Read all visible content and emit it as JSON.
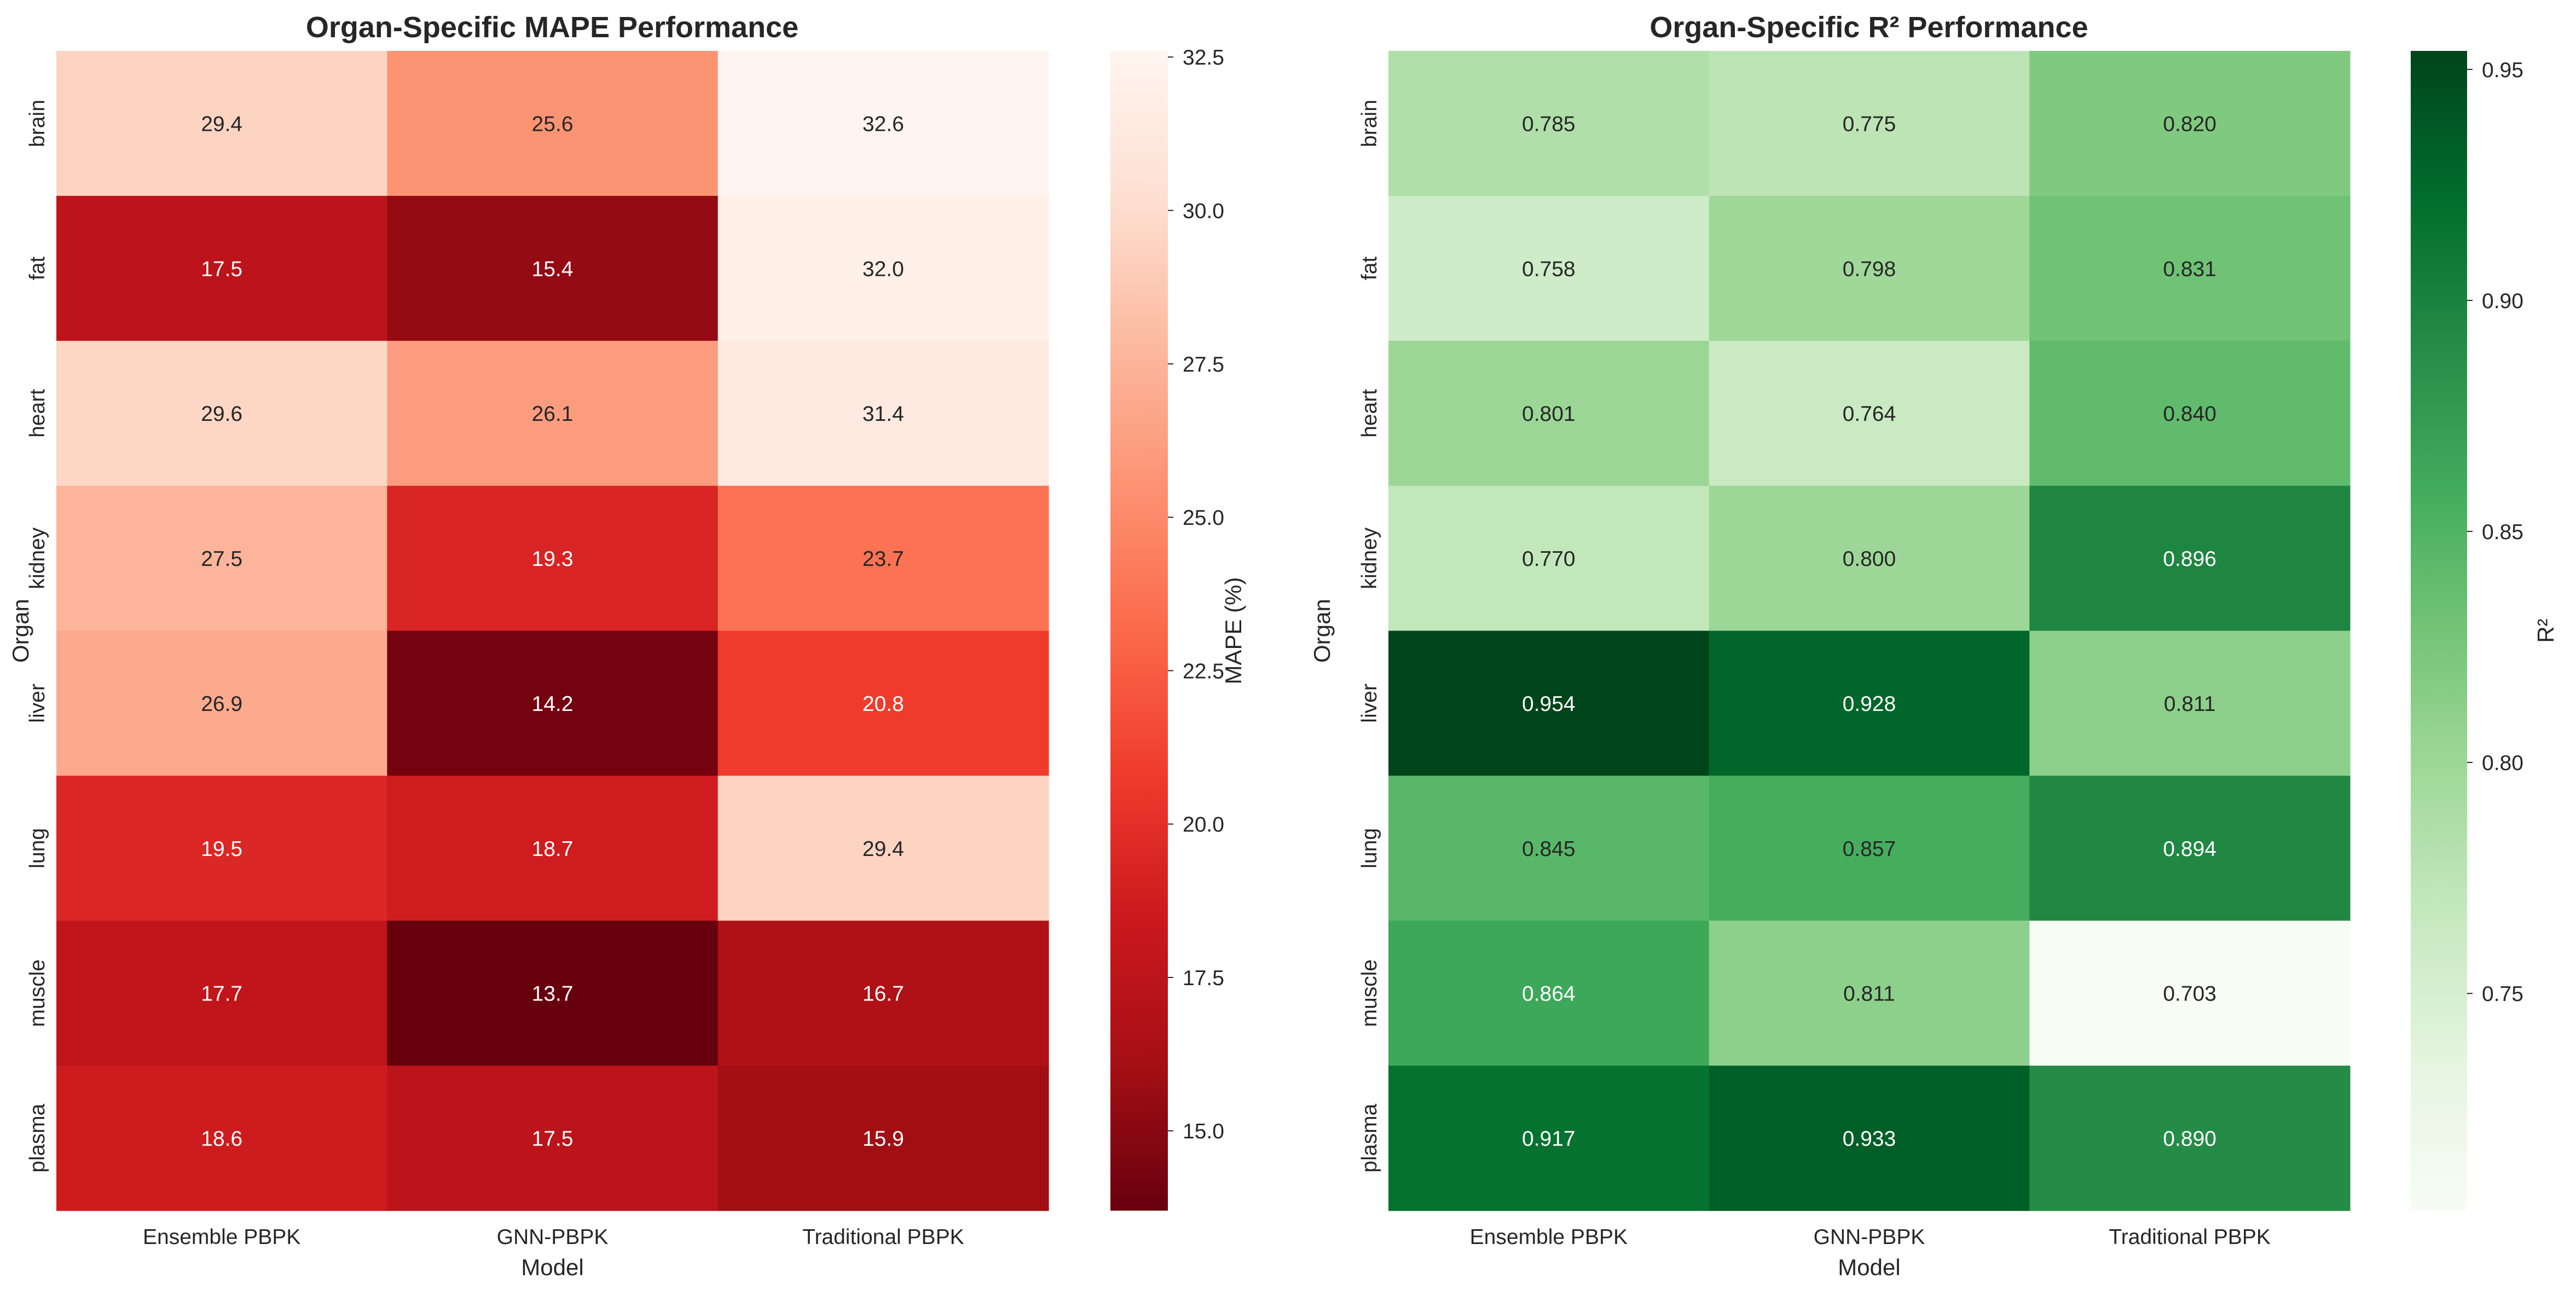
{
  "chart_data": [
    {
      "type": "heatmap",
      "title": "Organ-Specific MAPE Performance",
      "xlabel": "Model",
      "ylabel": "Organ",
      "colorbar_label": "MAPE (%)",
      "colormap": "Reds_r",
      "vmin": 13.7,
      "vmax": 32.6,
      "colorbar_ticks": [
        "15.0",
        "17.5",
        "20.0",
        "22.5",
        "25.0",
        "27.5",
        "30.0",
        "32.5"
      ],
      "columns": [
        "Ensemble PBPK",
        "GNN-PBPK",
        "Traditional PBPK"
      ],
      "rows": [
        "brain",
        "fat",
        "heart",
        "kidney",
        "liver",
        "lung",
        "muscle",
        "plasma"
      ],
      "values": [
        [
          29.4,
          25.6,
          32.6
        ],
        [
          17.5,
          15.4,
          32.0
        ],
        [
          29.6,
          26.1,
          31.4
        ],
        [
          27.5,
          19.3,
          23.7
        ],
        [
          26.9,
          14.2,
          20.8
        ],
        [
          19.5,
          18.7,
          29.4
        ],
        [
          17.7,
          13.7,
          16.7
        ],
        [
          18.6,
          17.5,
          15.9
        ]
      ],
      "value_format": "1"
    },
    {
      "type": "heatmap",
      "title": "Organ-Specific R² Performance",
      "xlabel": "Model",
      "ylabel": "Organ",
      "colorbar_label": "R²",
      "colormap": "Greens",
      "vmin": 0.703,
      "vmax": 0.954,
      "colorbar_ticks": [
        "0.75",
        "0.80",
        "0.85",
        "0.90",
        "0.95"
      ],
      "columns": [
        "Ensemble PBPK",
        "GNN-PBPK",
        "Traditional PBPK"
      ],
      "rows": [
        "brain",
        "fat",
        "heart",
        "kidney",
        "liver",
        "lung",
        "muscle",
        "plasma"
      ],
      "values": [
        [
          0.785,
          0.775,
          0.82
        ],
        [
          0.758,
          0.798,
          0.831
        ],
        [
          0.801,
          0.764,
          0.84
        ],
        [
          0.77,
          0.8,
          0.896
        ],
        [
          0.954,
          0.928,
          0.811
        ],
        [
          0.845,
          0.857,
          0.894
        ],
        [
          0.864,
          0.811,
          0.703
        ],
        [
          0.917,
          0.933,
          0.89
        ]
      ],
      "value_format": "3"
    }
  ]
}
